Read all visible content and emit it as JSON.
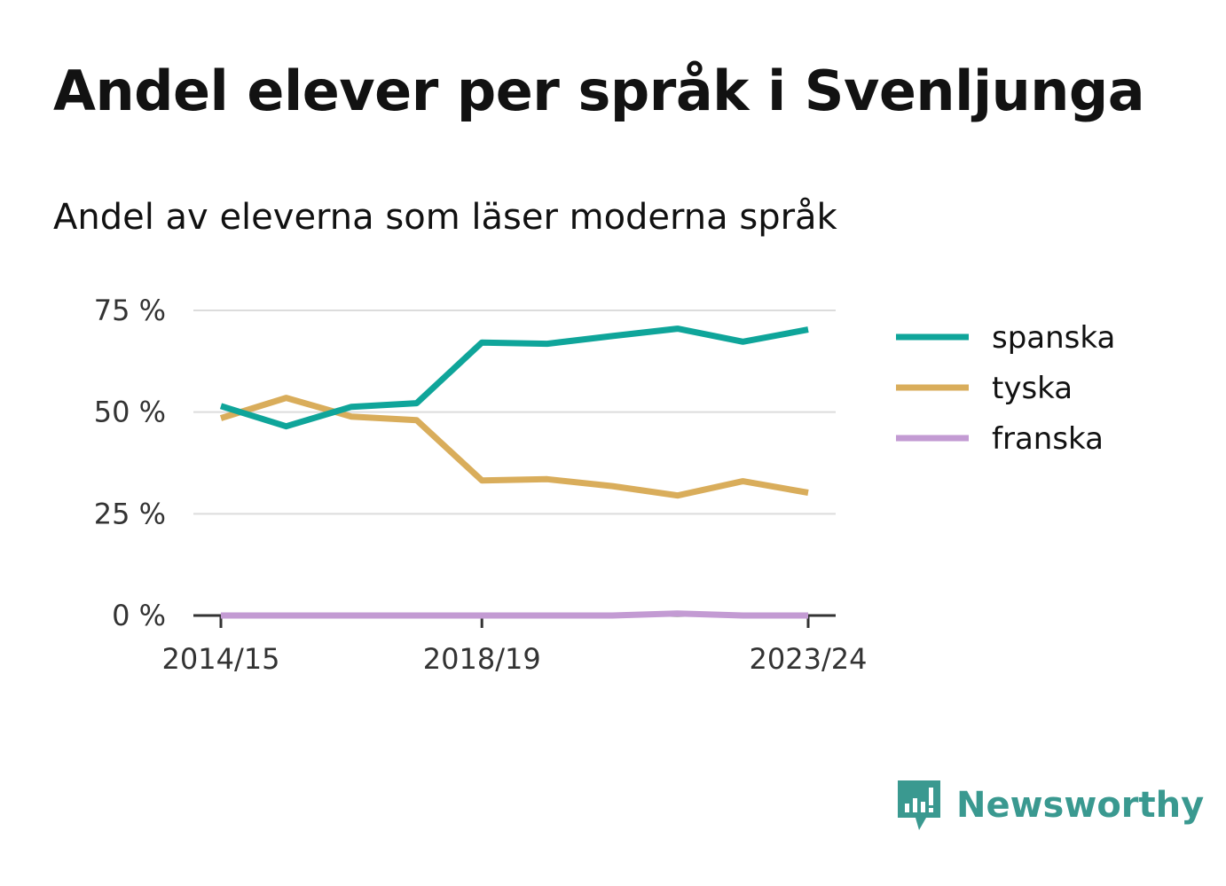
{
  "header": {
    "title": "Andel elever per språk i Svenljunga",
    "subtitle": "Andel av eleverna som läser moderna språk"
  },
  "brand": {
    "name": "Newsworthy",
    "icon": "newsworthy-logo-icon",
    "color": "#3a9990"
  },
  "chart_data": {
    "type": "line",
    "x": [
      "2014/15",
      "2015/16",
      "2016/17",
      "2017/18",
      "2018/19",
      "2019/20",
      "2020/21",
      "2021/22",
      "2022/23",
      "2023/24"
    ],
    "x_tick_labels": [
      "2014/15",
      "2018/19",
      "2023/24"
    ],
    "y_tick_labels": [
      "75 %",
      "50 %",
      "25 %",
      "0 %"
    ],
    "y_ticks": [
      75,
      50,
      25,
      0
    ],
    "ylim": [
      0,
      75
    ],
    "grid": true,
    "legend_position": "right",
    "series": [
      {
        "name": "spanska",
        "color": "#0fa59a",
        "values": [
          51.5,
          46.5,
          51.3,
          52.2,
          67.1,
          66.8,
          68.7,
          70.5,
          67.3,
          70.3
        ]
      },
      {
        "name": "tyska",
        "color": "#d9ad5b",
        "values": [
          48.5,
          53.5,
          48.9,
          48.0,
          33.2,
          33.5,
          31.8,
          29.5,
          33.0,
          30.2
        ]
      },
      {
        "name": "franska",
        "color": "#c39bd3",
        "values": [
          0.0,
          0.0,
          0.0,
          0.0,
          0.0,
          0.0,
          0.0,
          0.5,
          0.0,
          0.0
        ]
      }
    ]
  }
}
